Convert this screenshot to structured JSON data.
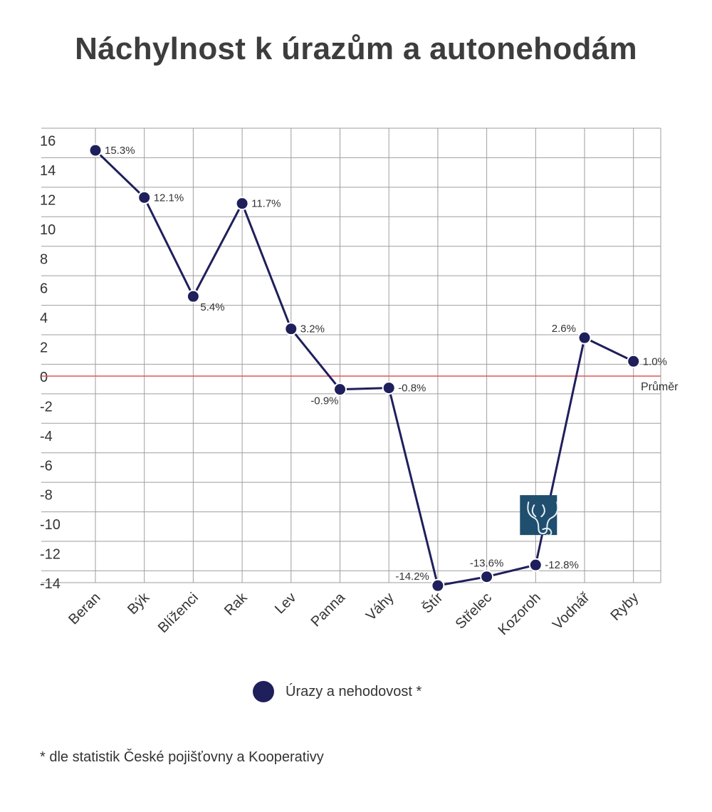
{
  "page": {
    "title": "Náchylnost k úrazům a autonehodám",
    "footnote": "* dle statistik České pojišťovny a Kooperativy"
  },
  "chart_data": {
    "type": "line",
    "title": "Náchylnost k úrazům a autonehodám",
    "categories": [
      "Beran",
      "Býk",
      "Blíženci",
      "Rak",
      "Lev",
      "Panna",
      "Váhy",
      "Štír",
      "Střelec",
      "Kozoroh",
      "Vodnář",
      "Ryby"
    ],
    "series": [
      {
        "name": "Úrazy a nehodovost *",
        "values": [
          15.3,
          12.1,
          5.4,
          11.7,
          3.2,
          -0.9,
          -0.8,
          -14.2,
          -13.6,
          -12.8,
          2.6,
          1.0
        ],
        "labels": [
          "15.3%",
          "12.1%",
          "5.4%",
          "11.7%",
          "3.2%",
          "-0.9%",
          "-0.8%",
          "-14.2%",
          "-13.6%",
          "-12.8%",
          "2.6%",
          "1.0%"
        ],
        "color": "#1f1f5c"
      }
    ],
    "reference_line": {
      "value": 0,
      "label": "Průměr",
      "color": "#e05555"
    },
    "yticks": [
      16,
      14,
      12,
      10,
      8,
      6,
      4,
      2,
      0,
      -2,
      -4,
      -6,
      -8,
      -10,
      -12,
      -14
    ],
    "ylim": [
      -14,
      16
    ],
    "grid": true,
    "gridColor": "#9e9e9e",
    "legend": "bottom",
    "marker_icon": {
      "category": "Kozoroh",
      "icon": "capricorn-goat-icon",
      "color": "#1f4e6e"
    }
  }
}
